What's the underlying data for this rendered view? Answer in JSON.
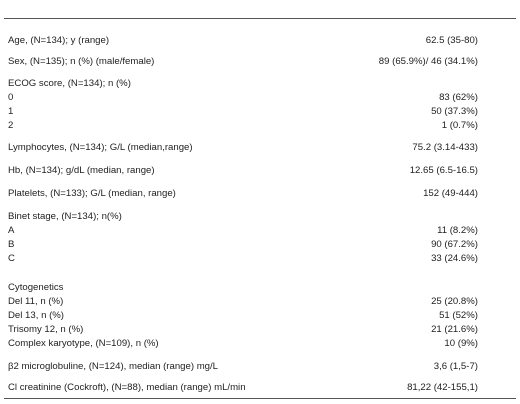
{
  "rows": [
    {
      "label": "Age, (N=134); y (range)",
      "value": "62.5 (35-80)"
    },
    {
      "label": "Sex, (N=135); n (%) (male/female)",
      "value": "89 (65.9%)/ 46 (34.1%)"
    },
    {
      "label": "ECOG score, (N=134); n (%)",
      "value": ""
    },
    {
      "label": "0",
      "value": "83 (62%)"
    },
    {
      "label": "1",
      "value": "50 (37.3%)"
    },
    {
      "label": "2",
      "value": "1 (0.7%)"
    },
    {
      "label": "Lymphocytes, (N=134); G/L (median,range)",
      "value": "75.2 (3.14-433)"
    },
    {
      "label": "Hb, (N=134); g/dL (median, range)",
      "value": "12.65 (6.5-16.5)"
    },
    {
      "label": "Platelets, (N=133);  G/L (median, range)",
      "value": "152 (49-444)"
    },
    {
      "label": "Binet stage, (N=134);  n(%)",
      "value": ""
    },
    {
      "label": "A",
      "value": "11 (8.2%)"
    },
    {
      "label": "B",
      "value": "90 (67.2%)"
    },
    {
      "label": "C",
      "value": "33 (24.6%)"
    },
    {
      "label": "Cytogenetics",
      "value": ""
    },
    {
      "label": "Del 11, n (%)",
      "value": "25 (20.8%)"
    },
    {
      "label": "Del 13, n (%)",
      "value": "51 (52%)"
    },
    {
      "label": "Trisomy 12, n (%)",
      "value": "21 (21.6%)"
    },
    {
      "label": " Complex karyotype, (N=109), n (%)",
      "value": "10 (9%)"
    },
    {
      "label": "β2 microglobuline, (N=124),  median (range) mg/L",
      "value": "3,6 (1,5-7)"
    },
    {
      "label": "Cl creatinine (Cockroft), (N=88),  median (range) mL/min",
      "value": "81,22 (42-155,1)"
    }
  ]
}
